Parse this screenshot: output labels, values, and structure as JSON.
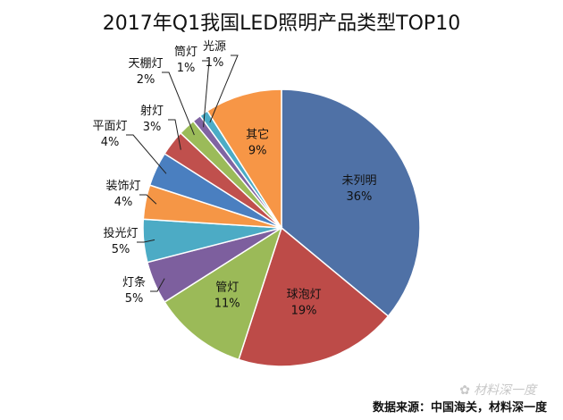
{
  "chart_data": {
    "type": "pie",
    "title": "2017年Q1我国LED照明产品类型TOP10",
    "categories": [
      "未列明",
      "球泡灯",
      "管灯",
      "灯条",
      "投光灯",
      "装饰灯",
      "平面灯",
      "射灯",
      "天棚灯",
      "筒灯",
      "光源",
      "其它"
    ],
    "values": [
      36,
      19,
      11,
      5,
      5,
      4,
      4,
      3,
      2,
      1,
      1,
      9
    ],
    "value_labels": [
      "36%",
      "19%",
      "11%",
      "5%",
      "5%",
      "4%",
      "4%",
      "3%",
      "2%",
      "1%",
      "1%",
      "9%"
    ],
    "colors": [
      "#4f71a6",
      "#bd4b48",
      "#9bba58",
      "#7d5f9e",
      "#4cabc5",
      "#f59646",
      "#4a7fc0",
      "#c0504d",
      "#9bbb59",
      "#8064a2",
      "#4bacc6",
      "#f79646"
    ],
    "legend": "none"
  },
  "source": "数据来源：中国海关，材料深一度",
  "watermark": "材料深一度"
}
